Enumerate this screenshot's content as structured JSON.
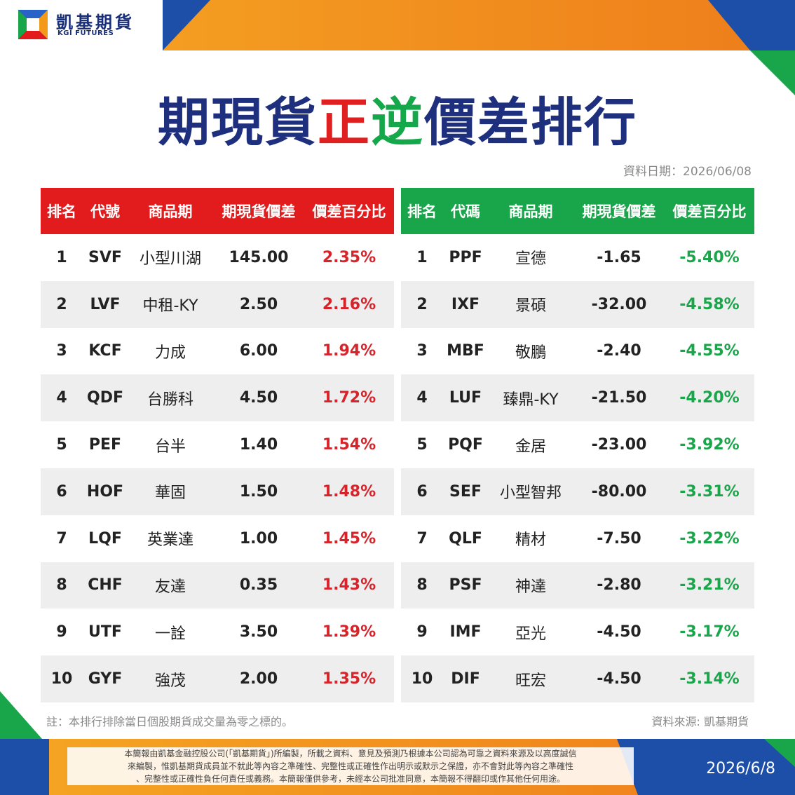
{
  "brand": {
    "name_cn": "凱基期貨",
    "name_en": "KGI FUTURES"
  },
  "title": {
    "part1": "期現貨",
    "part2": "正",
    "part3": "逆",
    "part4": "價差排行"
  },
  "data_date": "資料日期：2026/06/08",
  "left_table": {
    "headers": [
      "排名",
      "代號",
      "商品期",
      "期現貨價差",
      "價差百分比"
    ],
    "rows": [
      {
        "rank": "1",
        "code": "SVF",
        "name": "小型川湖",
        "diff": "145.00",
        "pct": "2.35%"
      },
      {
        "rank": "2",
        "code": "LVF",
        "name": "中租-KY",
        "diff": "2.50",
        "pct": "2.16%"
      },
      {
        "rank": "3",
        "code": "KCF",
        "name": "力成",
        "diff": "6.00",
        "pct": "1.94%"
      },
      {
        "rank": "4",
        "code": "QDF",
        "name": "台勝科",
        "diff": "4.50",
        "pct": "1.72%"
      },
      {
        "rank": "5",
        "code": "PEF",
        "name": "台半",
        "diff": "1.40",
        "pct": "1.54%"
      },
      {
        "rank": "6",
        "code": "HOF",
        "name": "華固",
        "diff": "1.50",
        "pct": "1.48%"
      },
      {
        "rank": "7",
        "code": "LQF",
        "name": "英業達",
        "diff": "1.00",
        "pct": "1.45%"
      },
      {
        "rank": "8",
        "code": "CHF",
        "name": "友達",
        "diff": "0.35",
        "pct": "1.43%"
      },
      {
        "rank": "9",
        "code": "UTF",
        "name": "一詮",
        "diff": "3.50",
        "pct": "1.39%"
      },
      {
        "rank": "10",
        "code": "GYF",
        "name": "強茂",
        "diff": "2.00",
        "pct": "1.35%"
      }
    ]
  },
  "right_table": {
    "headers": [
      "排名",
      "代碼",
      "商品期",
      "期現貨價差",
      "價差百分比"
    ],
    "rows": [
      {
        "rank": "1",
        "code": "PPF",
        "name": "宣德",
        "diff": "-1.65",
        "pct": "-5.40%"
      },
      {
        "rank": "2",
        "code": "IXF",
        "name": "景碩",
        "diff": "-32.00",
        "pct": "-4.58%"
      },
      {
        "rank": "3",
        "code": "MBF",
        "name": "敬鵬",
        "diff": "-2.40",
        "pct": "-4.55%"
      },
      {
        "rank": "4",
        "code": "LUF",
        "name": "臻鼎-KY",
        "diff": "-21.50",
        "pct": "-4.20%"
      },
      {
        "rank": "5",
        "code": "PQF",
        "name": "金居",
        "diff": "-23.00",
        "pct": "-3.92%"
      },
      {
        "rank": "6",
        "code": "SEF",
        "name": "小型智邦",
        "diff": "-80.00",
        "pct": "-3.31%"
      },
      {
        "rank": "7",
        "code": "QLF",
        "name": "精材",
        "diff": "-7.50",
        "pct": "-3.22%"
      },
      {
        "rank": "8",
        "code": "PSF",
        "name": "神達",
        "diff": "-2.80",
        "pct": "-3.21%"
      },
      {
        "rank": "9",
        "code": "IMF",
        "name": "亞光",
        "diff": "-4.50",
        "pct": "-3.17%"
      },
      {
        "rank": "10",
        "code": "DIF",
        "name": "旺宏",
        "diff": "-4.50",
        "pct": "-3.14%"
      }
    ]
  },
  "note": "註：本排行排除當日個股期貨成交量為零之標的。",
  "source": "資料來源: 凱基期貨",
  "disclaimer": [
    "本簡報由凱基金融控股公司(「凱基期貨」)所編製，所載之資料、意見及預測乃根據本公司認為可靠之資料來源及以高度誠信",
    "來編製，惟凱基期貨成員並不就此等內容之準確性、完整性或正確性作出明示或默示之保證，亦不會對此等內容之準確性",
    "、完整性或正確性負任何責任或義務。本簡報僅供參考，未經本公司批准同意，本簡報不得翻印或作其他任何用途。"
  ],
  "bottom_date": "2026/6/8",
  "colors": {
    "navy": "#1e2f7d",
    "red": "#e21c1c",
    "green": "#19a64a",
    "orange": "#f39a1b",
    "blue": "#1d4fa8"
  }
}
